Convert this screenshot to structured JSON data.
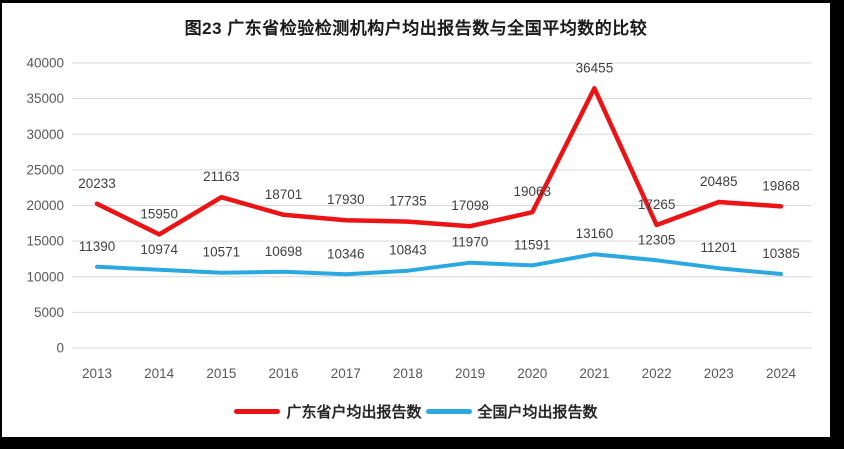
{
  "chart_data": {
    "type": "line",
    "title": "图23  广东省检验检测机构户均出报告数与全国平均数的比较",
    "categories": [
      "2013",
      "2014",
      "2015",
      "2016",
      "2017",
      "2018",
      "2019",
      "2020",
      "2021",
      "2022",
      "2023",
      "2024"
    ],
    "series": [
      {
        "name": "广东省户均出报告数",
        "color": "#ec1315",
        "values": [
          20233,
          15950,
          21163,
          18701,
          17930,
          17735,
          17098,
          19063,
          36455,
          17265,
          20485,
          19868
        ]
      },
      {
        "name": "全国户均出报告数",
        "color": "#29a9e0",
        "values": [
          11390,
          10974,
          10571,
          10698,
          10346,
          10843,
          11970,
          11591,
          13160,
          12305,
          11201,
          10385
        ]
      }
    ],
    "y_axis": {
      "min": 0,
      "max": 40000,
      "step": 5000,
      "ticks": [
        0,
        5000,
        10000,
        15000,
        20000,
        25000,
        30000,
        35000,
        40000
      ]
    },
    "xlabel": "",
    "ylabel": "",
    "grid": "horizontal",
    "legend_position": "bottom",
    "data_labels": true
  },
  "colors": {
    "frame": "#000000",
    "background": "#ffffff",
    "gridline": "#d9d9d9",
    "axis_text": "#595959",
    "label_text": "#404040",
    "title_text": "#1a1a1a"
  }
}
